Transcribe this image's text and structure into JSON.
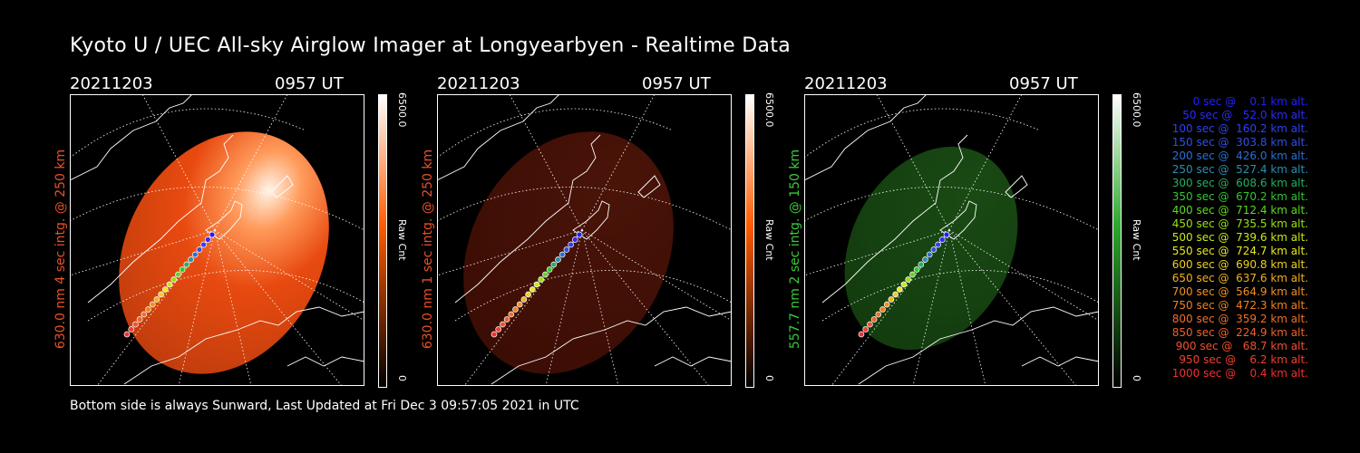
{
  "header": {
    "title": "Kyoto U / UEC All-sky Airglow Imager at Longyearbyen - Realtime Data"
  },
  "footer": {
    "text": "Bottom side is always Sunward, Last Updated at Fri Dec  3 09:57:05 2021 in UTC"
  },
  "panels": [
    {
      "date": "20211203",
      "time": "0957 UT",
      "label": "630.0 nm 4 sec intg. @ 250 km",
      "label_color": "#e8502a",
      "cbar_max": "6500.0",
      "cbar_unit": "Raw Cnt",
      "cbar_min": "0",
      "cbar_colors": [
        "#000000",
        "#ff5a00",
        "#ffffff"
      ],
      "brightness": "high"
    },
    {
      "date": "20211203",
      "time": "0957 UT",
      "label": "630.0 nm 1 sec intg. @ 250 km",
      "label_color": "#e8502a",
      "cbar_max": "6500.0",
      "cbar_unit": "Raw Cnt",
      "cbar_min": "0",
      "cbar_colors": [
        "#000000",
        "#ff5a00",
        "#ffffff"
      ],
      "brightness": "low"
    },
    {
      "date": "20211203",
      "time": "0957 UT",
      "label": "557.7 nm 2 sec intg. @ 150 km",
      "label_color": "#3cc83c",
      "cbar_max": "6500.0",
      "cbar_unit": "Raw Cnt",
      "cbar_min": "0",
      "cbar_colors": [
        "#000000",
        "#2aa82a",
        "#ffffff"
      ],
      "brightness": "low"
    }
  ],
  "legend": [
    {
      "text": "   0 sec @    0.1 km alt.",
      "color": "#2020ff"
    },
    {
      "text": "  50 sec @   52.0 km alt.",
      "color": "#2a2aff"
    },
    {
      "text": " 100 sec @  160.2 km alt.",
      "color": "#3040f0"
    },
    {
      "text": " 150 sec @  303.8 km alt.",
      "color": "#3050e0"
    },
    {
      "text": " 200 sec @  426.0 km alt.",
      "color": "#2a70d0"
    },
    {
      "text": " 250 sec @  527.4 km alt.",
      "color": "#2a90b0"
    },
    {
      "text": " 300 sec @  608.6 km alt.",
      "color": "#22b060"
    },
    {
      "text": " 350 sec @  670.2 km alt.",
      "color": "#30c830"
    },
    {
      "text": " 400 sec @  712.4 km alt.",
      "color": "#60d820"
    },
    {
      "text": " 450 sec @  735.5 km alt.",
      "color": "#98e018"
    },
    {
      "text": " 500 sec @  739.6 km alt.",
      "color": "#c8e818"
    },
    {
      "text": " 550 sec @  724.7 km alt.",
      "color": "#e8e820"
    },
    {
      "text": " 600 sec @  690.8 km alt.",
      "color": "#f0d020"
    },
    {
      "text": " 650 sec @  637.6 km alt.",
      "color": "#f0b020"
    },
    {
      "text": " 700 sec @  564.9 km alt.",
      "color": "#f09020"
    },
    {
      "text": " 750 sec @  472.3 km alt.",
      "color": "#f08020"
    },
    {
      "text": " 800 sec @  359.2 km alt.",
      "color": "#f07028"
    },
    {
      "text": " 850 sec @  224.9 km alt.",
      "color": "#f06028"
    },
    {
      "text": " 900 sec @   68.7 km alt.",
      "color": "#f05030"
    },
    {
      "text": " 950 sec @    6.2 km alt.",
      "color": "#f04030"
    },
    {
      "text": "1000 sec @    0.4 km alt.",
      "color": "#f03030"
    }
  ]
}
